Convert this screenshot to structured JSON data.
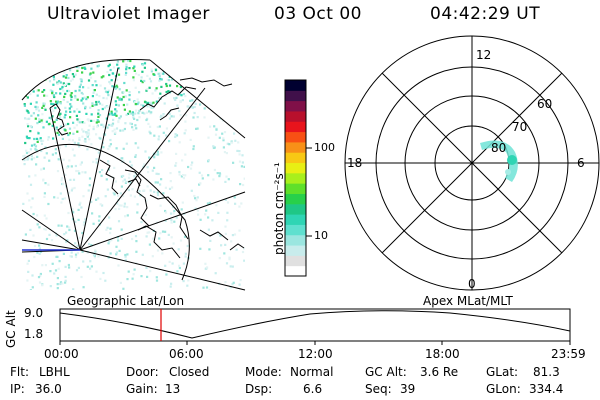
{
  "header": {
    "instrument": "Ultraviolet Imager",
    "date": "03 Oct 00",
    "time": "04:42:29 UT"
  },
  "colorbar": {
    "unit_label": "photon cm⁻²s⁻¹",
    "ticks": [
      "100",
      "10"
    ],
    "colors": [
      "#ffffff",
      "#e0e0e0",
      "#c8ecec",
      "#9be6e0",
      "#5fe0cf",
      "#2fd5b4",
      "#1fc786",
      "#28d04a",
      "#5fe02a",
      "#a8ef1c",
      "#e8ef14",
      "#f8c814",
      "#f89018",
      "#f85014",
      "#e8141c",
      "#b8102c",
      "#801048",
      "#40104a",
      "#000030"
    ]
  },
  "polar_plot": {
    "clock_labels": [
      "12",
      "18",
      "6",
      "0"
    ],
    "lat_labels": [
      "60",
      "70",
      "80"
    ]
  },
  "altitude_plot": {
    "y_axis_label": "GC Alt",
    "y_ticks": [
      "9.0",
      "1.8"
    ],
    "left_title": "Geographic Lat/Lon",
    "right_title": "Apex MLat/MLT",
    "x_ticks": [
      "00:00",
      "06:00",
      "12:00",
      "18:00",
      "23:59"
    ],
    "marker_color": "#e00000"
  },
  "footer": {
    "row1": [
      {
        "key": "Flt:",
        "value": "LBHL"
      },
      {
        "key": "Door:",
        "value": "Closed"
      },
      {
        "key": "Mode:",
        "value": "Normal"
      },
      {
        "key": "GC Alt:",
        "value": "3.6 Re"
      },
      {
        "key": "GLat:",
        "value": "81.3"
      }
    ],
    "row2": [
      {
        "key": "IP:",
        "value": "36.0"
      },
      {
        "key": "Gain:",
        "value": "13"
      },
      {
        "key": "Dsp:",
        "value": "6.6"
      },
      {
        "key": "Seq:",
        "value": "39"
      },
      {
        "key": "GLon:",
        "value": "334.4"
      }
    ]
  }
}
